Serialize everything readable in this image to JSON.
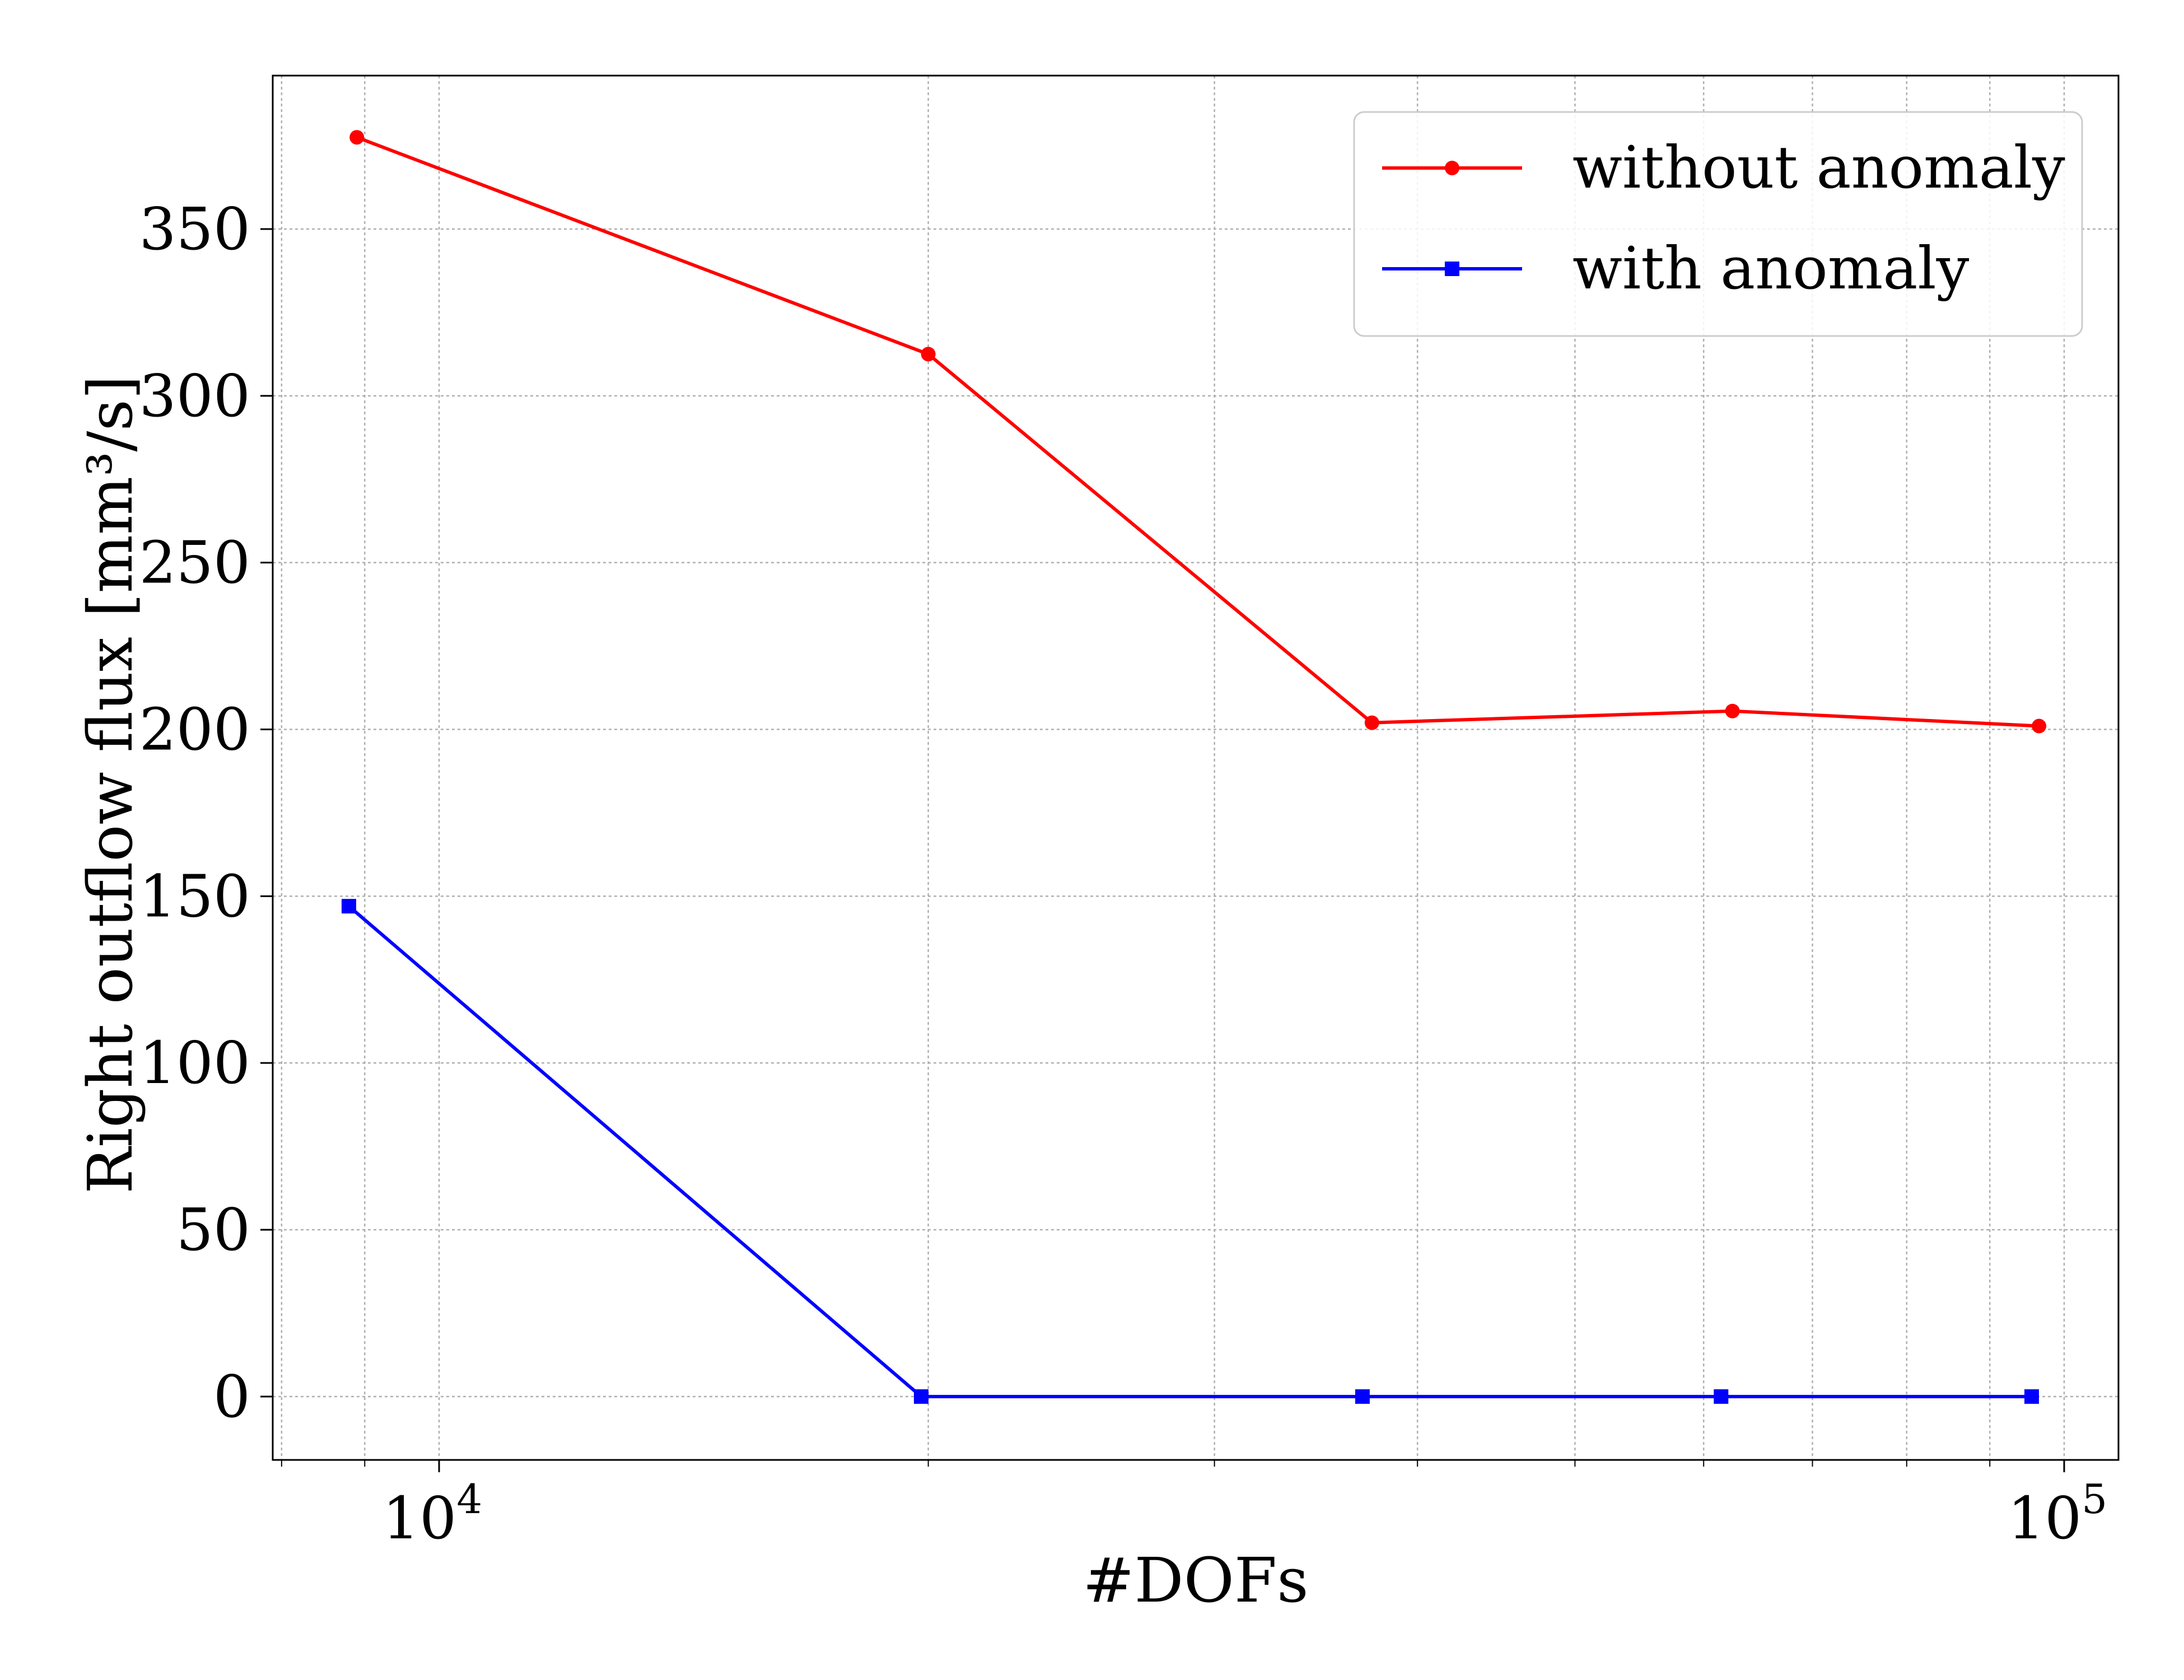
{
  "chart_data": {
    "type": "line",
    "title": "",
    "xlabel": "#DOFs",
    "ylabel": "Right outflow flux [mm³/s]",
    "xscale": "log",
    "xlim": [
      7900,
      108000
    ],
    "ylim": [
      -19,
      396
    ],
    "grid": true,
    "legend_position": "top-right",
    "x_ticks": [
      {
        "value": 10000,
        "base": "10",
        "exp": "4"
      },
      {
        "value": 100000,
        "base": "10",
        "exp": "5"
      }
    ],
    "y_ticks": [
      0,
      50,
      100,
      150,
      200,
      250,
      300,
      350
    ],
    "series": [
      {
        "name": "without anomaly",
        "color": "#ff0000",
        "marker": "circle",
        "x": [
          8900,
          20000,
          37500,
          62500,
          96500
        ],
        "values": [
          377.5,
          312.5,
          202,
          205.5,
          201
        ]
      },
      {
        "name": "with anomaly",
        "color": "#0000ff",
        "marker": "square",
        "x": [
          8800,
          19800,
          37000,
          61500,
          95500
        ],
        "values": [
          147,
          0,
          0,
          0,
          0
        ]
      }
    ]
  }
}
